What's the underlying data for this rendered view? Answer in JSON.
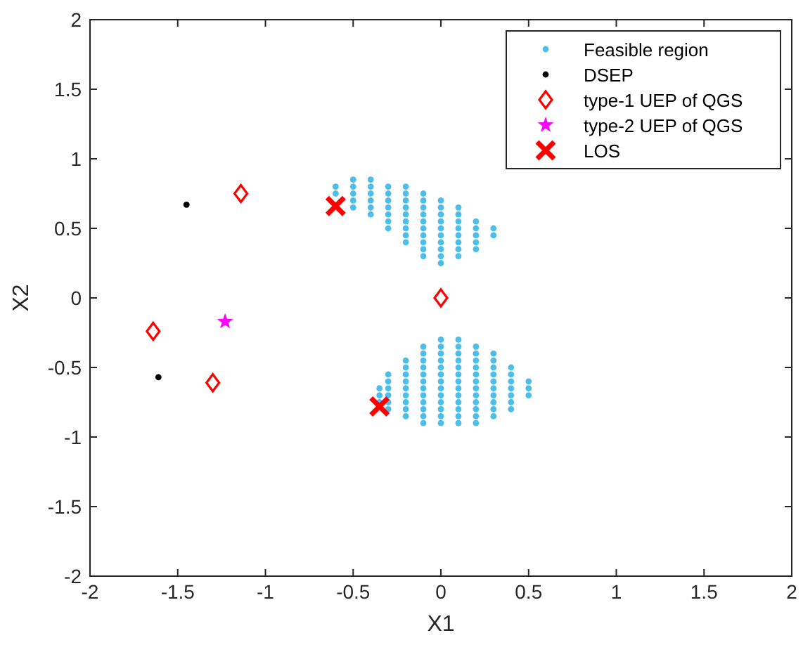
{
  "chart_data": {
    "type": "scatter",
    "xlabel": "X1",
    "ylabel": "X2",
    "xlim": [
      -2,
      2
    ],
    "ylim": [
      -2,
      2
    ],
    "xticks": [
      -2,
      -1.5,
      -1,
      -0.5,
      0,
      0.5,
      1,
      1.5,
      2
    ],
    "yticks": [
      -2,
      -1.5,
      -1,
      -0.5,
      0,
      0.5,
      1,
      1.5,
      2
    ],
    "grid": false,
    "legend": "top right",
    "series": [
      {
        "name": "Feasible region",
        "color": "#4dbeea",
        "marker": "circle",
        "x": [
          -0.6,
          -0.6,
          -0.5,
          -0.5,
          -0.5,
          -0.5,
          -0.5,
          -0.4,
          -0.4,
          -0.4,
          -0.4,
          -0.4,
          -0.4,
          -0.3,
          -0.3,
          -0.3,
          -0.3,
          -0.3,
          -0.3,
          -0.3,
          -0.2,
          -0.2,
          -0.2,
          -0.2,
          -0.2,
          -0.2,
          -0.2,
          -0.2,
          -0.2,
          -0.1,
          -0.1,
          -0.1,
          -0.1,
          -0.1,
          -0.1,
          -0.1,
          -0.1,
          -0.1,
          -0.1,
          0,
          0,
          0,
          0,
          0,
          0,
          0,
          0,
          0,
          0,
          0.1,
          0.1,
          0.1,
          0.1,
          0.1,
          0.1,
          0.1,
          0.1,
          0.2,
          0.2,
          0.2,
          0.2,
          0.2,
          0.3,
          0.3,
          -0.35,
          -0.35,
          -0.35,
          -0.3,
          -0.3,
          -0.3,
          -0.3,
          -0.3,
          -0.3,
          -0.2,
          -0.2,
          -0.2,
          -0.2,
          -0.2,
          -0.2,
          -0.2,
          -0.2,
          -0.2,
          -0.1,
          -0.1,
          -0.1,
          -0.1,
          -0.1,
          -0.1,
          -0.1,
          -0.1,
          -0.1,
          -0.1,
          -0.1,
          -0.1,
          0,
          0,
          0,
          0,
          0,
          0,
          0,
          0,
          0,
          0,
          0,
          0,
          0,
          0.1,
          0.1,
          0.1,
          0.1,
          0.1,
          0.1,
          0.1,
          0.1,
          0.1,
          0.1,
          0.1,
          0.1,
          0.1,
          0.2,
          0.2,
          0.2,
          0.2,
          0.2,
          0.2,
          0.2,
          0.2,
          0.2,
          0.2,
          0.2,
          0.2,
          0.3,
          0.3,
          0.3,
          0.3,
          0.3,
          0.3,
          0.3,
          0.3,
          0.3,
          0.3,
          0.4,
          0.4,
          0.4,
          0.4,
          0.4,
          0.4,
          0.4,
          0.5,
          0.5,
          0.5
        ],
        "values": [
          0.75,
          0.8,
          0.65,
          0.7,
          0.75,
          0.8,
          0.85,
          0.6,
          0.65,
          0.7,
          0.75,
          0.8,
          0.85,
          0.5,
          0.55,
          0.6,
          0.65,
          0.7,
          0.75,
          0.8,
          0.4,
          0.45,
          0.5,
          0.55,
          0.6,
          0.65,
          0.7,
          0.75,
          0.8,
          0.3,
          0.35,
          0.4,
          0.45,
          0.5,
          0.55,
          0.6,
          0.65,
          0.7,
          0.75,
          0.25,
          0.3,
          0.35,
          0.4,
          0.45,
          0.5,
          0.55,
          0.6,
          0.65,
          0.7,
          0.3,
          0.35,
          0.4,
          0.45,
          0.5,
          0.55,
          0.6,
          0.65,
          0.35,
          0.4,
          0.45,
          0.5,
          0.55,
          0.45,
          0.5,
          -0.65,
          -0.7,
          -0.75,
          -0.55,
          -0.6,
          -0.65,
          -0.7,
          -0.75,
          -0.8,
          -0.45,
          -0.5,
          -0.55,
          -0.6,
          -0.65,
          -0.7,
          -0.75,
          -0.8,
          -0.85,
          -0.35,
          -0.4,
          -0.45,
          -0.5,
          -0.55,
          -0.6,
          -0.65,
          -0.7,
          -0.75,
          -0.8,
          -0.85,
          -0.9,
          -0.3,
          -0.35,
          -0.4,
          -0.45,
          -0.5,
          -0.55,
          -0.6,
          -0.65,
          -0.7,
          -0.75,
          -0.8,
          -0.85,
          -0.9,
          -0.3,
          -0.35,
          -0.4,
          -0.45,
          -0.5,
          -0.55,
          -0.6,
          -0.65,
          -0.7,
          -0.75,
          -0.8,
          -0.85,
          -0.9,
          -0.35,
          -0.4,
          -0.45,
          -0.5,
          -0.55,
          -0.6,
          -0.65,
          -0.7,
          -0.75,
          -0.8,
          -0.85,
          -0.9,
          -0.4,
          -0.45,
          -0.5,
          -0.55,
          -0.6,
          -0.65,
          -0.7,
          -0.75,
          -0.8,
          -0.85,
          -0.5,
          -0.55,
          -0.6,
          -0.65,
          -0.7,
          -0.75,
          -0.8,
          -0.6,
          -0.65,
          -0.7
        ]
      },
      {
        "name": "DSEP",
        "color": "#000000",
        "marker": "circle",
        "x": [
          -1.45,
          -1.61
        ],
        "values": [
          0.67,
          -0.57
        ]
      },
      {
        "name": "type-1 UEP of QGS",
        "color": "#ff0000",
        "marker": "diamond",
        "x": [
          -1.14,
          -1.64,
          -1.3,
          0
        ],
        "values": [
          0.75,
          -0.24,
          -0.61,
          0
        ]
      },
      {
        "name": "type-2 UEP of QGS",
        "color": "#ff00ff",
        "marker": "star",
        "x": [
          -1.23
        ],
        "values": [
          -0.17
        ]
      },
      {
        "name": "LOS",
        "color": "#ff0000",
        "marker": "cross",
        "x": [
          -0.6,
          -0.35
        ],
        "values": [
          0.66,
          -0.78
        ]
      }
    ]
  }
}
